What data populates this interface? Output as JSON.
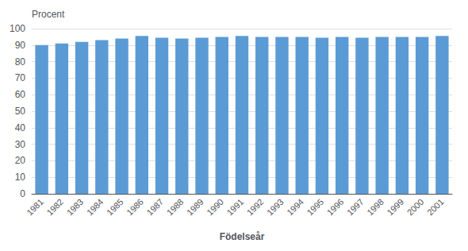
{
  "chart_data": {
    "type": "bar",
    "ylabel": "Procent",
    "xlabel": "Födelseår",
    "categories": [
      "1981",
      "1982",
      "1983",
      "1984",
      "1985",
      "1986",
      "1987",
      "1988",
      "1989",
      "1990",
      "1991",
      "1992",
      "1993",
      "1994",
      "1995",
      "1996",
      "1997",
      "1998",
      "1999",
      "2000",
      "2001"
    ],
    "values": [
      90,
      91,
      92,
      93,
      94,
      95.5,
      94.5,
      94,
      94.5,
      95,
      95.5,
      95,
      95,
      95,
      94.5,
      95,
      94.5,
      95,
      95,
      95,
      95.5
    ],
    "color": "#5B9BD5",
    "ylim": [
      0,
      100
    ],
    "yticks": [
      0,
      10,
      20,
      30,
      40,
      50,
      60,
      70,
      80,
      90,
      100
    ],
    "grid": true
  }
}
